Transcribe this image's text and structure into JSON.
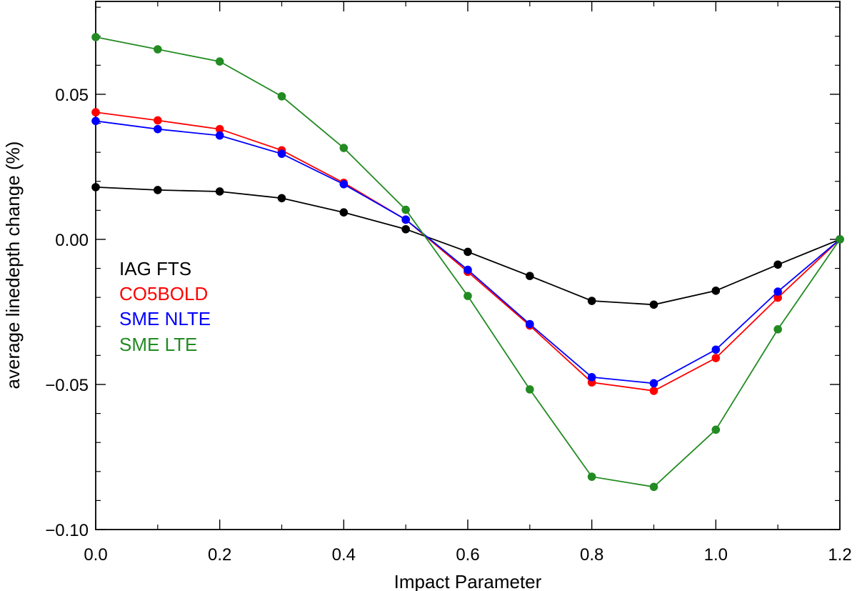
{
  "chart_data": {
    "type": "line",
    "title": "",
    "xlabel": "Impact Parameter",
    "ylabel": "average linedepth change (%)",
    "xlim": [
      0.0,
      1.2
    ],
    "ylim": [
      -0.1,
      0.082
    ],
    "x_major_ticks": [
      0.0,
      0.2,
      0.4,
      0.6,
      0.8,
      1.0,
      1.2
    ],
    "x_tick_labels": [
      "0.0",
      "0.2",
      "0.4",
      "0.6",
      "0.8",
      "1.0",
      "1.2"
    ],
    "x_minor_ticks": [
      0.1,
      0.3,
      0.5,
      0.7,
      0.9,
      1.1
    ],
    "y_major_ticks": [
      -0.1,
      -0.05,
      0.0,
      0.05
    ],
    "y_tick_labels": [
      "−0.10",
      "−0.05",
      "0.00",
      "0.05"
    ],
    "y_minor_ticks": [
      -0.09,
      -0.08,
      -0.07,
      -0.06,
      -0.04,
      -0.03,
      -0.02,
      -0.01,
      0.01,
      0.02,
      0.03,
      0.04,
      0.06,
      0.07,
      0.08
    ],
    "grid": false,
    "legend_position": "left-middle",
    "x": [
      0.0,
      0.1,
      0.2,
      0.3,
      0.4,
      0.5,
      0.6,
      0.7,
      0.8,
      0.9,
      1.0,
      1.1,
      1.2
    ],
    "series": [
      {
        "name": "IAG FTS",
        "color": "#000000",
        "values": [
          0.018,
          0.017,
          0.0165,
          0.0142,
          0.0093,
          0.0035,
          -0.0043,
          -0.0126,
          -0.0212,
          -0.0225,
          -0.0177,
          -0.0087,
          0.0
        ]
      },
      {
        "name": "CO5BOLD",
        "color": "#ff0000",
        "values": [
          0.0438,
          0.041,
          0.038,
          0.0307,
          0.0195,
          0.0068,
          -0.0112,
          -0.0297,
          -0.0493,
          -0.0522,
          -0.0409,
          -0.0201,
          0.0
        ]
      },
      {
        "name": "SME NLTE",
        "color": "#0000ff",
        "values": [
          0.0408,
          0.038,
          0.0358,
          0.0295,
          0.019,
          0.0068,
          -0.0105,
          -0.0292,
          -0.0475,
          -0.0496,
          -0.038,
          -0.018,
          0.0
        ]
      },
      {
        "name": "SME LTE",
        "color": "#228b22",
        "values": [
          0.0697,
          0.0655,
          0.0613,
          0.0493,
          0.0315,
          0.0102,
          -0.0195,
          -0.0517,
          -0.0818,
          -0.0853,
          -0.0656,
          -0.031,
          0.0
        ]
      }
    ]
  }
}
